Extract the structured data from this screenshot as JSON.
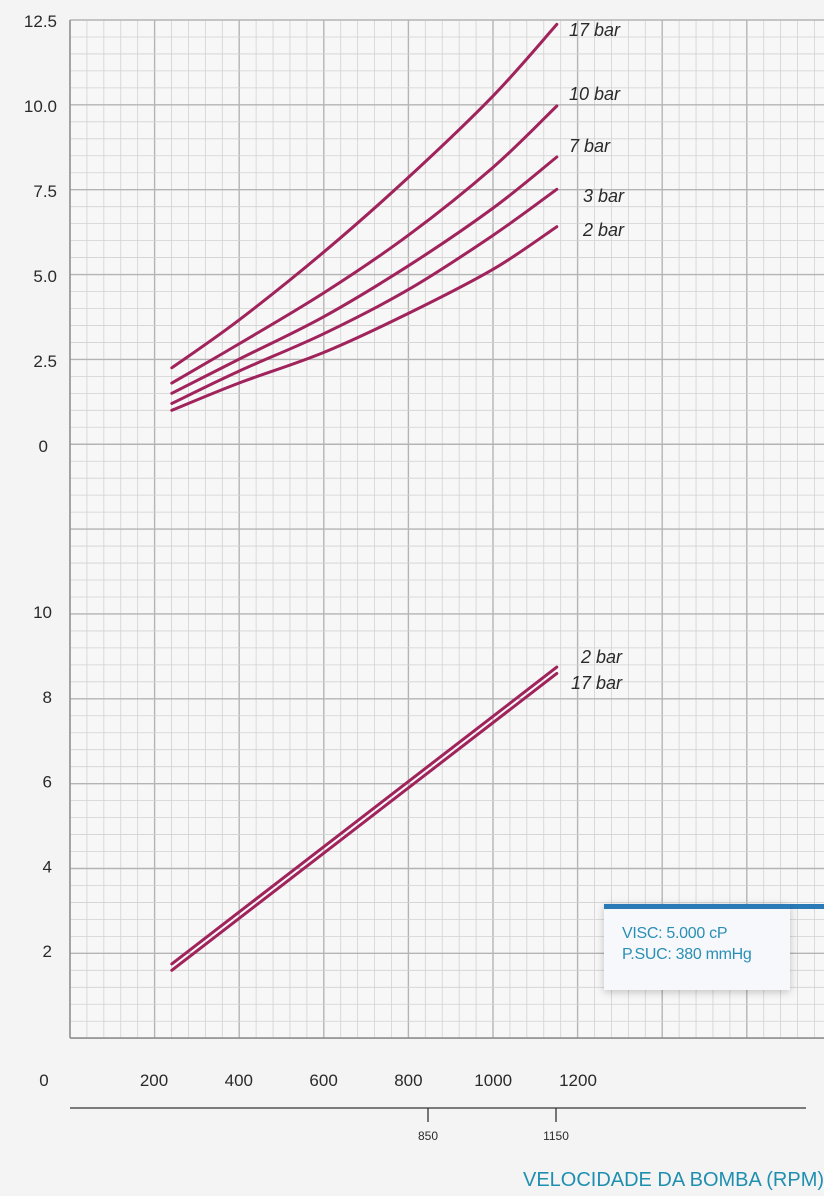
{
  "chart_data": [
    {
      "type": "line",
      "title": "",
      "xlabel": "",
      "ylabel": "",
      "x_ticks": [
        "200",
        "400",
        "600",
        "800",
        "1000",
        "1200"
      ],
      "y_ticks": [
        "0",
        "2.5",
        "5.0",
        "7.5",
        "10.0",
        "12.5"
      ],
      "ylim": [
        0,
        12.5
      ],
      "grid": true,
      "series": [
        {
          "name": "17 bar",
          "x": [
            242,
            400,
            600,
            800,
            1000,
            1150
          ],
          "y": [
            2.3,
            3.7,
            5.7,
            7.9,
            10.3,
            12.4
          ]
        },
        {
          "name": "10 bar",
          "x": [
            242,
            400,
            600,
            800,
            1000,
            1150
          ],
          "y": [
            1.85,
            3.0,
            4.5,
            6.2,
            8.2,
            10.0
          ]
        },
        {
          "name": "7 bar",
          "x": [
            242,
            400,
            600,
            800,
            1000,
            1150
          ],
          "y": [
            1.55,
            2.55,
            3.8,
            5.3,
            7.0,
            8.5
          ]
        },
        {
          "name": "3 bar",
          "x": [
            242,
            400,
            600,
            800,
            1000,
            1150
          ],
          "y": [
            1.25,
            2.2,
            3.3,
            4.6,
            6.2,
            7.55
          ]
        },
        {
          "name": "2 bar",
          "x": [
            242,
            400,
            600,
            800,
            1000,
            1150
          ],
          "y": [
            1.05,
            1.85,
            2.75,
            3.9,
            5.2,
            6.45
          ]
        }
      ]
    },
    {
      "type": "line",
      "title": "",
      "xlabel": "VELOCIDADE DA BOMBA (RPM)",
      "ylabel": "",
      "x_ticks": [
        "0",
        "200",
        "400",
        "600",
        "800",
        "1000",
        "1200"
      ],
      "y_ticks": [
        "2",
        "4",
        "6",
        "8",
        "10"
      ],
      "secondary_x_ticks": [
        "850",
        "1150"
      ],
      "ylim": [
        0,
        10
      ],
      "grid": true,
      "series": [
        {
          "name": "2 bar",
          "x": [
            242,
            1150
          ],
          "y": [
            1.7,
            8.7
          ]
        },
        {
          "name": "17 bar",
          "x": [
            242,
            1150
          ],
          "y": [
            1.55,
            8.55
          ]
        }
      ]
    }
  ],
  "legend": {
    "visc": "VISC: 5.000 cP",
    "psuc": "P.SUC: 380 mmHg"
  },
  "colors": {
    "curve": "#a0235c",
    "grid_major": "#b4b4b4",
    "grid_minor": "#d2d2d2",
    "accent": "#2a7ab8",
    "label_blue": "#1f8fb0"
  }
}
